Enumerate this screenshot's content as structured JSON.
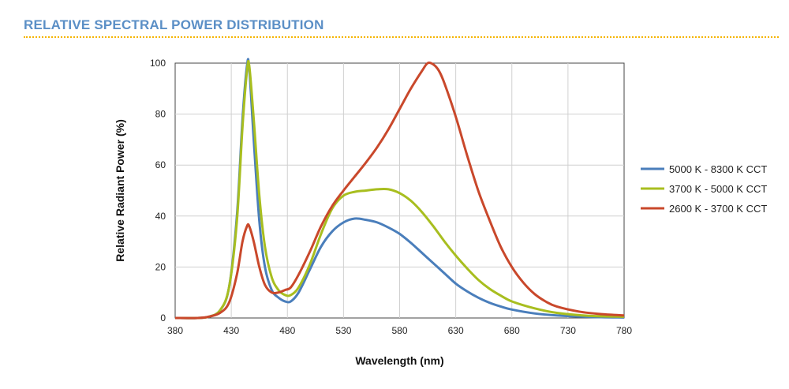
{
  "header": {
    "title": "RELATIVE SPECTRAL POWER DISTRIBUTION",
    "title_color": "#5b8fc6",
    "rule_color": "#f5b400"
  },
  "chart_data": {
    "type": "line",
    "xlabel": "Wavelength (nm)",
    "ylabel": "Relative Radiant Power (%)",
    "xlim": [
      380,
      780
    ],
    "ylim": [
      0,
      100
    ],
    "xticks": [
      380,
      430,
      480,
      530,
      580,
      630,
      680,
      730,
      780
    ],
    "yticks": [
      0,
      20,
      40,
      60,
      80,
      100
    ],
    "grid": "vertical and horizontal",
    "legend_position": "right",
    "series": [
      {
        "name": "5000 K - 8300 K CCT",
        "color": "#4a7ebb",
        "points": [
          [
            380,
            0
          ],
          [
            400,
            0
          ],
          [
            410,
            0.5
          ],
          [
            420,
            3
          ],
          [
            428,
            12
          ],
          [
            435,
            40
          ],
          [
            440,
            78
          ],
          [
            444,
            99
          ],
          [
            446,
            98
          ],
          [
            450,
            70
          ],
          [
            455,
            38
          ],
          [
            460,
            20
          ],
          [
            466,
            11
          ],
          [
            472,
            8
          ],
          [
            478,
            6.5
          ],
          [
            483,
            6.5
          ],
          [
            490,
            10
          ],
          [
            500,
            19
          ],
          [
            510,
            28
          ],
          [
            520,
            34
          ],
          [
            530,
            37.5
          ],
          [
            540,
            39
          ],
          [
            550,
            38.5
          ],
          [
            560,
            37.5
          ],
          [
            570,
            35.5
          ],
          [
            580,
            33
          ],
          [
            590,
            29.5
          ],
          [
            600,
            25.5
          ],
          [
            610,
            21.5
          ],
          [
            620,
            17.5
          ],
          [
            630,
            13.5
          ],
          [
            640,
            10.5
          ],
          [
            650,
            8
          ],
          [
            660,
            6
          ],
          [
            670,
            4.5
          ],
          [
            680,
            3.3
          ],
          [
            700,
            1.8
          ],
          [
            720,
            1
          ],
          [
            750,
            0.4
          ],
          [
            780,
            0.2
          ]
        ]
      },
      {
        "name": "3700 K - 5000 K CCT",
        "color": "#a8be1f",
        "points": [
          [
            380,
            0
          ],
          [
            400,
            0
          ],
          [
            410,
            0.5
          ],
          [
            420,
            3
          ],
          [
            428,
            12
          ],
          [
            435,
            38
          ],
          [
            440,
            75
          ],
          [
            444,
            97
          ],
          [
            446,
            99
          ],
          [
            450,
            78
          ],
          [
            455,
            48
          ],
          [
            460,
            28
          ],
          [
            466,
            16
          ],
          [
            472,
            11
          ],
          [
            478,
            9
          ],
          [
            483,
            9
          ],
          [
            490,
            12
          ],
          [
            500,
            21
          ],
          [
            510,
            33
          ],
          [
            520,
            43
          ],
          [
            530,
            48
          ],
          [
            540,
            49.5
          ],
          [
            550,
            50
          ],
          [
            560,
            50.5
          ],
          [
            570,
            50.5
          ],
          [
            580,
            49
          ],
          [
            590,
            46
          ],
          [
            600,
            41.5
          ],
          [
            610,
            36
          ],
          [
            620,
            30
          ],
          [
            630,
            24.5
          ],
          [
            640,
            19.5
          ],
          [
            650,
            15
          ],
          [
            660,
            11.5
          ],
          [
            670,
            8.8
          ],
          [
            680,
            6.5
          ],
          [
            700,
            3.8
          ],
          [
            720,
            2
          ],
          [
            750,
            0.8
          ],
          [
            780,
            0.5
          ]
        ]
      },
      {
        "name": "2600 K - 3700 K CCT",
        "color": "#c9482b",
        "points": [
          [
            380,
            0
          ],
          [
            400,
            0
          ],
          [
            410,
            0.5
          ],
          [
            420,
            2
          ],
          [
            428,
            6
          ],
          [
            435,
            17
          ],
          [
            440,
            30
          ],
          [
            444,
            36
          ],
          [
            446,
            36
          ],
          [
            450,
            30
          ],
          [
            455,
            20
          ],
          [
            460,
            13
          ],
          [
            466,
            10
          ],
          [
            472,
            10
          ],
          [
            478,
            11
          ],
          [
            483,
            12
          ],
          [
            490,
            17
          ],
          [
            500,
            26
          ],
          [
            510,
            36
          ],
          [
            520,
            44
          ],
          [
            530,
            50
          ],
          [
            540,
            55.5
          ],
          [
            550,
            61
          ],
          [
            560,
            67
          ],
          [
            570,
            74
          ],
          [
            580,
            82
          ],
          [
            590,
            90
          ],
          [
            600,
            97
          ],
          [
            605,
            100
          ],
          [
            610,
            99.5
          ],
          [
            615,
            97
          ],
          [
            620,
            92
          ],
          [
            630,
            79
          ],
          [
            640,
            64
          ],
          [
            650,
            50
          ],
          [
            660,
            38.5
          ],
          [
            670,
            28
          ],
          [
            680,
            20
          ],
          [
            690,
            14
          ],
          [
            700,
            9.5
          ],
          [
            710,
            6.5
          ],
          [
            720,
            4.5
          ],
          [
            740,
            2.5
          ],
          [
            760,
            1.5
          ],
          [
            780,
            1
          ]
        ]
      }
    ]
  }
}
